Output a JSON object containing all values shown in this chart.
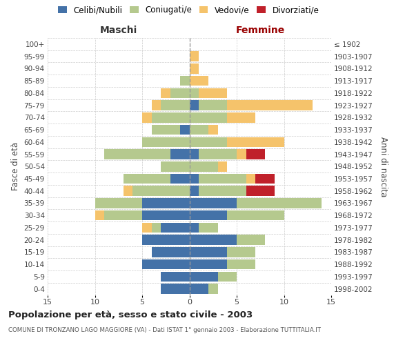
{
  "age_groups": [
    "0-4",
    "5-9",
    "10-14",
    "15-19",
    "20-24",
    "25-29",
    "30-34",
    "35-39",
    "40-44",
    "45-49",
    "50-54",
    "55-59",
    "60-64",
    "65-69",
    "70-74",
    "75-79",
    "80-84",
    "85-89",
    "90-94",
    "95-99",
    "100+"
  ],
  "birth_years": [
    "1998-2002",
    "1993-1997",
    "1988-1992",
    "1983-1987",
    "1978-1982",
    "1973-1977",
    "1968-1972",
    "1963-1967",
    "1958-1962",
    "1953-1957",
    "1948-1952",
    "1943-1947",
    "1938-1942",
    "1933-1937",
    "1928-1932",
    "1923-1927",
    "1918-1922",
    "1913-1917",
    "1908-1912",
    "1903-1907",
    "≤ 1902"
  ],
  "males_celibi": [
    3,
    3,
    5,
    4,
    5,
    3,
    5,
    5,
    0,
    2,
    0,
    2,
    0,
    1,
    0,
    0,
    0,
    0,
    0,
    0,
    0
  ],
  "males_coniugati": [
    0,
    0,
    0,
    0,
    0,
    1,
    4,
    5,
    6,
    5,
    3,
    7,
    5,
    3,
    4,
    3,
    2,
    1,
    0,
    0,
    0
  ],
  "males_vedovi": [
    0,
    0,
    0,
    0,
    0,
    1,
    1,
    0,
    1,
    0,
    0,
    0,
    0,
    0,
    1,
    1,
    1,
    0,
    0,
    0,
    0
  ],
  "males_divorziati": [
    0,
    0,
    0,
    0,
    0,
    0,
    0,
    0,
    0,
    0,
    0,
    0,
    0,
    0,
    0,
    0,
    0,
    0,
    0,
    0,
    0
  ],
  "fem_nubili": [
    2,
    3,
    4,
    4,
    5,
    1,
    4,
    5,
    1,
    1,
    0,
    1,
    0,
    0,
    0,
    1,
    0,
    0,
    0,
    0,
    0
  ],
  "fem_coniugate": [
    1,
    2,
    3,
    3,
    3,
    2,
    6,
    9,
    5,
    5,
    3,
    4,
    4,
    2,
    4,
    3,
    1,
    0,
    0,
    0,
    0
  ],
  "fem_vedove": [
    0,
    0,
    0,
    0,
    0,
    0,
    0,
    0,
    0,
    1,
    1,
    1,
    6,
    1,
    3,
    9,
    3,
    2,
    1,
    1,
    0
  ],
  "fem_divorziate": [
    0,
    0,
    0,
    0,
    0,
    0,
    0,
    0,
    3,
    2,
    0,
    2,
    0,
    0,
    0,
    0,
    0,
    0,
    0,
    0,
    0
  ],
  "color_celibi": "#4472a8",
  "color_coniugati": "#b5c98e",
  "color_vedovi": "#f5c36b",
  "color_divorziati": "#c0202a",
  "xlim": 15,
  "title": "Popolazione per età, sesso e stato civile - 2003",
  "subtitle": "COMUNE DI TRONZANO LAGO MAGGIORE (VA) - Dati ISTAT 1° gennaio 2003 - Elaborazione TUTTITALIA.IT",
  "xlabel_left": "Maschi",
  "xlabel_right": "Femmine",
  "ylabel_left": "Fasce di età",
  "ylabel_right": "Anni di nascita",
  "bg_color": "#ffffff",
  "grid_color": "#cccccc"
}
